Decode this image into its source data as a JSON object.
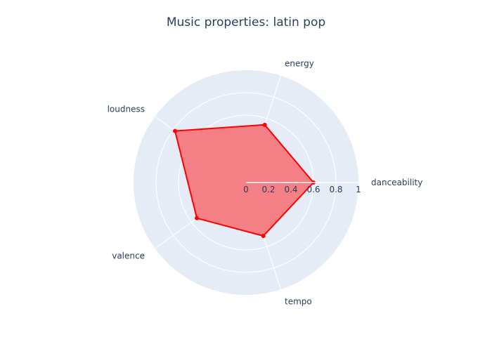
{
  "chart_data": {
    "type": "radar",
    "title": "Music properties: latin pop",
    "categories": [
      "danceability",
      "energy",
      "loudness",
      "valence",
      "tempo"
    ],
    "series": [
      {
        "values": [
          0.6,
          0.54,
          0.78,
          0.54,
          0.5
        ],
        "color": "#ff0000",
        "fill": "#f47a7f"
      }
    ],
    "radial_axis": {
      "range": [
        0,
        1
      ],
      "ticks": [
        0,
        0.2,
        0.4,
        0.6,
        0.8,
        1
      ],
      "tick_labels": [
        "0",
        "0.2",
        "0.4",
        "0.6",
        "0.8",
        "1"
      ]
    },
    "angular_direction": "counterclockwise",
    "start_angle_deg": 0,
    "grid": true,
    "polar_background": "#e5ecf6",
    "grid_color": "#ffffff",
    "text_color": "#2a3f5f"
  }
}
